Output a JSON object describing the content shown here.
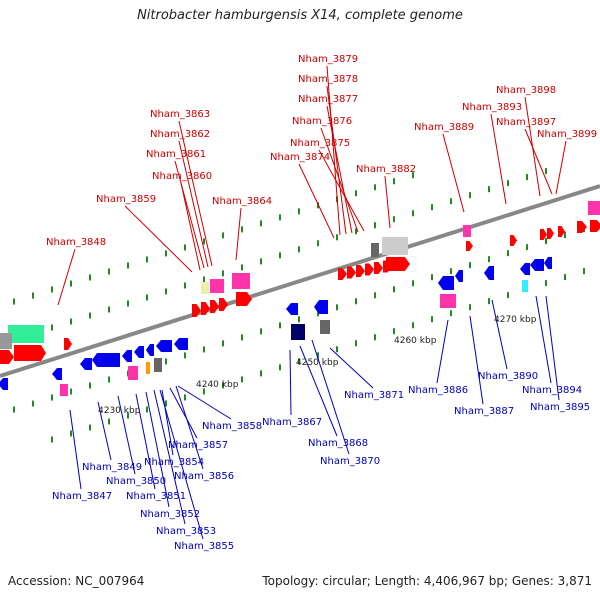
{
  "title": "Nitrobacter hamburgensis X14, complete genome",
  "footer": {
    "accession": "Accession: NC_007964",
    "summary": "Topology: circular; Length: 4,406,967 bp; Genes: 3,871"
  },
  "colors": {
    "upper_strand_label": "#cc0000",
    "lower_strand_label": "#0000bb",
    "backbone": "#888888",
    "tick": "#228822"
  },
  "kbp_labels": [
    "4230 kbp",
    "4240 kbp",
    "4250 kbp",
    "4260 kbp",
    "4270 kbp"
  ],
  "gene_labels_upper": [
    "Nham_3879",
    "Nham_3878",
    "Nham_3877",
    "Nham_3876",
    "Nham_3875",
    "Nham_3874",
    "Nham_3882",
    "Nham_3863",
    "Nham_3862",
    "Nham_3861",
    "Nham_3860",
    "Nham_3859",
    "Nham_3864",
    "Nham_3848",
    "Nham_3898",
    "Nham_3893",
    "Nham_3897",
    "Nham_3899",
    "Nham_3889"
  ],
  "gene_labels_lower": [
    "Nham_3871",
    "Nham_3867",
    "Nham_3868",
    "Nham_3870",
    "Nham_3886",
    "Nham_3887",
    "Nham_3890",
    "Nham_3894",
    "Nham_3895",
    "Nham_3858",
    "Nham_3857",
    "Nham_3854",
    "Nham_3856",
    "Nham_3849",
    "Nham_3850",
    "Nham_3851",
    "Nham_3852",
    "Nham_3853",
    "Nham_3855",
    "Nham_3847"
  ]
}
